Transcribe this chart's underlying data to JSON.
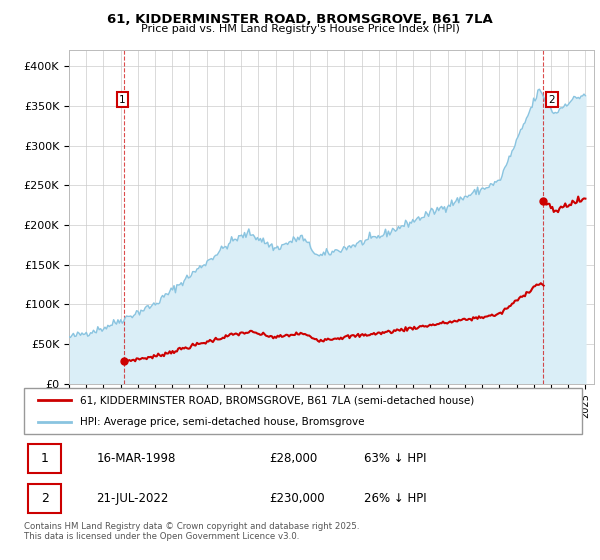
{
  "title_line1": "61, KIDDERMINSTER ROAD, BROMSGROVE, B61 7LA",
  "title_line2": "Price paid vs. HM Land Registry's House Price Index (HPI)",
  "ylim": [
    0,
    420000
  ],
  "yticks": [
    0,
    50000,
    100000,
    150000,
    200000,
    250000,
    300000,
    350000,
    400000
  ],
  "ytick_labels": [
    "£0",
    "£50K",
    "£100K",
    "£150K",
    "£200K",
    "£250K",
    "£300K",
    "£350K",
    "£400K"
  ],
  "hpi_color": "#8ac4e0",
  "hpi_fill_color": "#daeef7",
  "price_color": "#cc0000",
  "annotation_box_color": "#cc0000",
  "legend_label_price": "61, KIDDERMINSTER ROAD, BROMSGROVE, B61 7LA (semi-detached house)",
  "legend_label_hpi": "HPI: Average price, semi-detached house, Bromsgrove",
  "table_row1": [
    "1",
    "16-MAR-1998",
    "£28,000",
    "63% ↓ HPI"
  ],
  "table_row2": [
    "2",
    "21-JUL-2022",
    "£230,000",
    "26% ↓ HPI"
  ],
  "footnote": "Contains HM Land Registry data © Crown copyright and database right 2025.\nThis data is licensed under the Open Government Licence v3.0.",
  "t1": 1998.21,
  "p1": 28000,
  "t2": 2022.54,
  "p2": 230000,
  "xlim_left": 1995.0,
  "xlim_right": 2025.5
}
